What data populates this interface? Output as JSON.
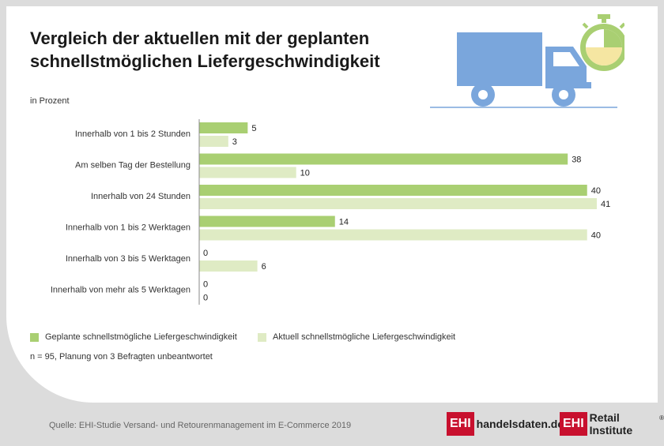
{
  "title": "Vergleich der aktuellen mit der geplanten schnellstmöglichen Liefergeschwindigkeit",
  "unit_label": "in Prozent",
  "note": "n = 95, Planung von 3 Befragten unbeantwortet",
  "source": "Quelle: EHI-Studie Versand- und Retourenmanagement im E-Commerce 2019",
  "logos": {
    "left": {
      "box": "EHI",
      "text": "handelsdaten.de"
    },
    "right": {
      "box": "EHI",
      "text": "Retail Institute",
      "mark": "®"
    }
  },
  "icons": [
    "truck-icon",
    "stopwatch-icon"
  ],
  "colors": {
    "planned": "#a9cf72",
    "current": "#dfebc4",
    "axis": "#888888"
  },
  "chart_data": {
    "type": "bar",
    "orientation": "horizontal",
    "categories": [
      "Innerhalb von 1 bis 2 Stunden",
      "Am selben Tag der Bestellung",
      "Innerhalb von 24 Stunden",
      "Innerhalb von 1 bis 2 Werktagen",
      "Innerhalb von 3 bis 5 Werktagen",
      "Innerhalb von mehr als 5 Werktagen"
    ],
    "series": [
      {
        "name": "Geplante schnellstmögliche Liefergeschwindigkeit",
        "values": [
          5,
          38,
          40,
          14,
          0,
          0
        ]
      },
      {
        "name": "Aktuell schnellstmögliche Liefergeschwindigkeit",
        "values": [
          3,
          10,
          41,
          40,
          6,
          0
        ]
      }
    ],
    "xlim": [
      0,
      41
    ],
    "legend": "bottom",
    "grid": false
  }
}
